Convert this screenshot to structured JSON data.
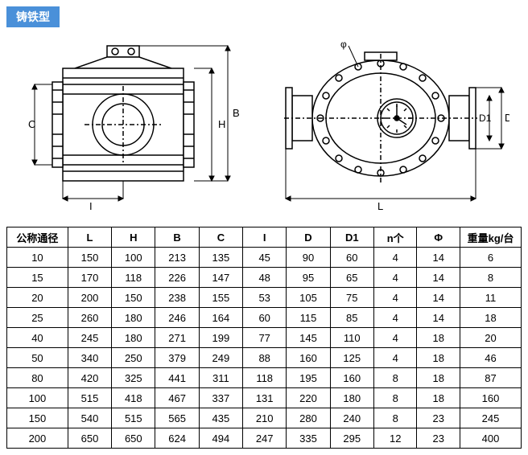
{
  "title": "铸铁型",
  "table": {
    "columns": [
      "公称通径",
      "L",
      "H",
      "B",
      "C",
      "I",
      "D",
      "D1",
      "n个",
      "Φ",
      "重量kg/台"
    ],
    "rows": [
      [
        "10",
        "150",
        "100",
        "213",
        "135",
        "45",
        "90",
        "60",
        "4",
        "14",
        "6"
      ],
      [
        "15",
        "170",
        "118",
        "226",
        "147",
        "48",
        "95",
        "65",
        "4",
        "14",
        "8"
      ],
      [
        "20",
        "200",
        "150",
        "238",
        "155",
        "53",
        "105",
        "75",
        "4",
        "14",
        "11"
      ],
      [
        "25",
        "260",
        "180",
        "246",
        "164",
        "60",
        "115",
        "85",
        "4",
        "14",
        "18"
      ],
      [
        "40",
        "245",
        "180",
        "271",
        "199",
        "77",
        "145",
        "110",
        "4",
        "18",
        "20"
      ],
      [
        "50",
        "340",
        "250",
        "379",
        "249",
        "88",
        "160",
        "125",
        "4",
        "18",
        "46"
      ],
      [
        "80",
        "420",
        "325",
        "441",
        "311",
        "118",
        "195",
        "160",
        "8",
        "18",
        "87"
      ],
      [
        "100",
        "515",
        "418",
        "467",
        "337",
        "131",
        "220",
        "180",
        "8",
        "18",
        "160"
      ],
      [
        "150",
        "540",
        "515",
        "565",
        "435",
        "210",
        "280",
        "240",
        "8",
        "23",
        "245"
      ],
      [
        "200",
        "650",
        "650",
        "624",
        "494",
        "247",
        "335",
        "295",
        "12",
        "23",
        "400"
      ]
    ]
  },
  "dim_labels": {
    "left": {
      "C": "C",
      "I": "I",
      "H": "H",
      "B": "B"
    },
    "right": {
      "L": "L",
      "D": "D",
      "D1": "D1",
      "phi": "φ"
    }
  },
  "style": {
    "badge_bg": "#4a90d9",
    "badge_fg": "#ffffff",
    "border_color": "#000000",
    "font_size_table": 13,
    "font_size_badge": 14
  }
}
